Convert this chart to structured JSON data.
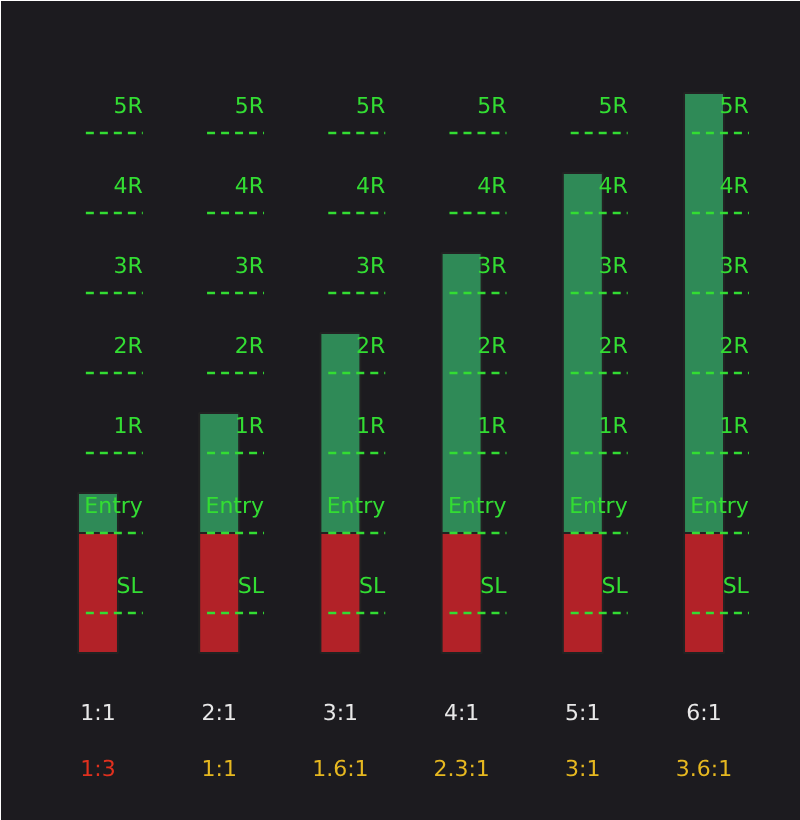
{
  "chart_data": {
    "type": "bar",
    "stacked": true,
    "annotations": [
      "1:3",
      "1:1",
      "1.6:1",
      "2.3:1",
      "3:1",
      "3.6:1"
    ],
    "categories": [
      "1:1",
      "2:1",
      "3:1",
      "4:1",
      "5:1",
      "6:1"
    ],
    "series": [
      {
        "color": "#b22228",
        "values": [
          -1.5,
          -1.5,
          -1.5,
          -1.5,
          -1.5,
          -1.5
        ]
      },
      {
        "color": "#2f8a57",
        "values": [
          0.5,
          1.5,
          2.5,
          3.5,
          4.5,
          5.5
        ]
      }
    ],
    "ylim": [
      -3.3,
      5.9
    ],
    "tick_labels": "x",
    "grid": false,
    "ref_lines": [
      {
        "axis": "y",
        "value": -1,
        "label": "SL",
        "color": "#33dd33",
        "line_style": "dashed"
      },
      {
        "axis": "y",
        "value": 0,
        "label": "Entry",
        "color": "#33dd33",
        "line_style": "dashed"
      },
      {
        "axis": "y",
        "value": 1,
        "label": "1R",
        "color": "#33dd33",
        "line_style": "dashed"
      },
      {
        "axis": "y",
        "value": 2,
        "label": "2R",
        "color": "#33dd33",
        "line_style": "dashed"
      },
      {
        "axis": "y",
        "value": 3,
        "label": "3R",
        "color": "#33dd33",
        "line_style": "dashed"
      },
      {
        "axis": "y",
        "value": 4,
        "label": "4R",
        "color": "#33dd33",
        "line_style": "dashed"
      },
      {
        "axis": "y",
        "value": 5,
        "label": "5R",
        "color": "#33dd33",
        "line_style": "dashed"
      }
    ]
  }
}
